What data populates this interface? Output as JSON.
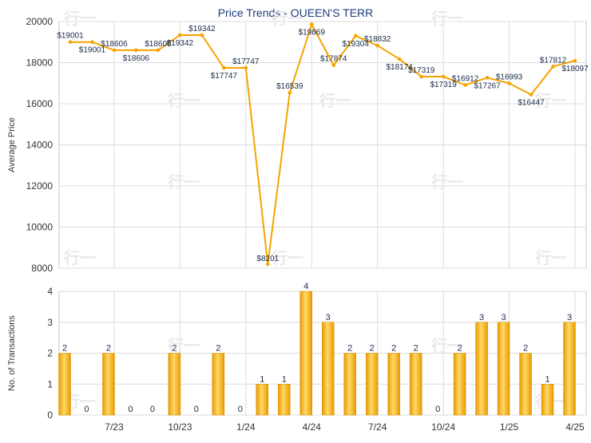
{
  "chart_data": [
    {
      "type": "line",
      "title": "Price Trends - QUEEN'S TERR",
      "ylabel": "Average Price",
      "ylim": [
        8000,
        20000
      ],
      "yticks": [
        8000,
        10000,
        12000,
        14000,
        16000,
        18000,
        20000
      ],
      "x_ticks": [
        "7/23",
        "10/23",
        "1/24",
        "4/24",
        "7/24",
        "10/24",
        "1/25",
        "4/25"
      ],
      "series": [
        {
          "values": [
            19001,
            19001,
            18606,
            18606,
            18606,
            19342,
            19342,
            17747,
            17747,
            8201,
            16539,
            19869,
            17874,
            19304,
            18832,
            18174,
            17319,
            17319,
            16912,
            17267,
            16993,
            16447,
            17812,
            18097
          ],
          "labels": [
            "$19001",
            "$19001",
            "$18606",
            "$18606",
            "$18606",
            "$19342",
            "$19342",
            "$17747",
            "$17747",
            "$8201",
            "$16539",
            "$19869",
            "$17874",
            "$19304",
            "$18832",
            "$18174",
            "$17319",
            "$17319",
            "$16912",
            "$17267",
            "$16993",
            "$16447",
            "$17812",
            "$18097"
          ]
        }
      ],
      "color": "#f5a300",
      "grid": true
    },
    {
      "type": "bar",
      "ylabel": "No. of Transactions",
      "ylim": [
        0,
        4
      ],
      "yticks": [
        0,
        1,
        2,
        3,
        4
      ],
      "x_ticks": [
        "7/23",
        "10/23",
        "1/24",
        "4/24",
        "7/24",
        "10/24",
        "1/25",
        "4/25"
      ],
      "values": [
        2,
        0,
        2,
        0,
        0,
        2,
        0,
        2,
        0,
        1,
        1,
        4,
        3,
        2,
        2,
        2,
        2,
        0,
        2,
        3,
        3,
        2,
        1,
        3
      ],
      "color": "#f5a300",
      "grid": true
    }
  ],
  "watermark": "行一"
}
